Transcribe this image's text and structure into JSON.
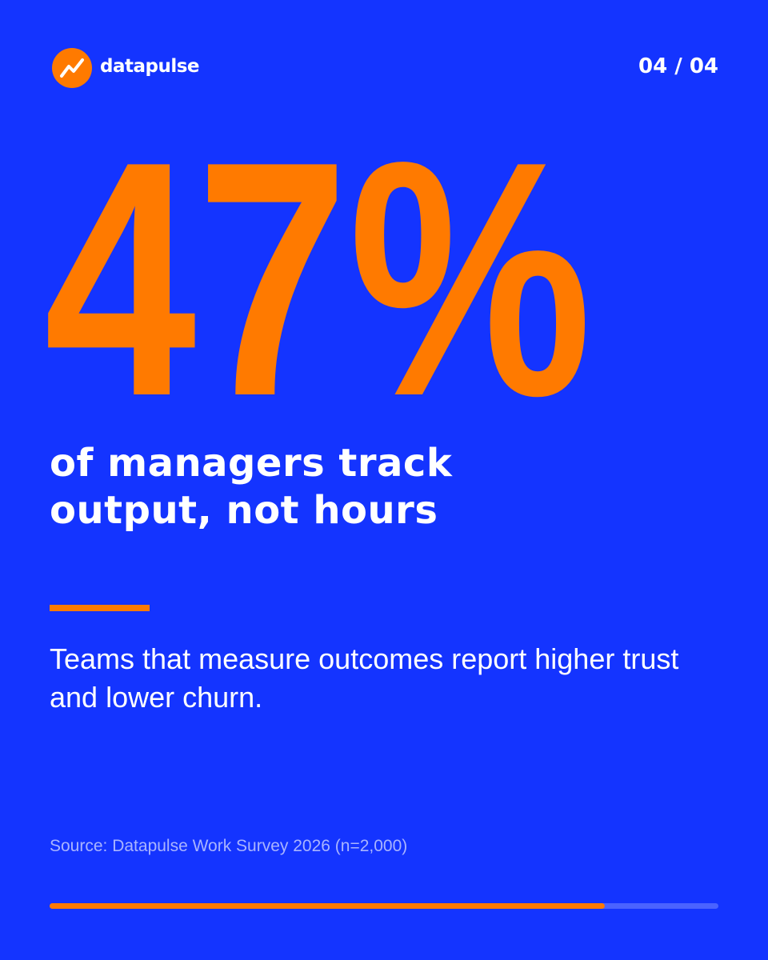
{
  "brand": "datapulse",
  "page_indicator": "04 / 04",
  "stat": "47%",
  "headline_lines": [
    "of managers track",
    "output, not hours"
  ],
  "body": "Teams that measure outcomes report higher trust and lower churn.",
  "source": "Source: Datapulse Work Survey 2026 (n=2,000)",
  "progress": {
    "value": 83,
    "range": [
      0,
      100
    ]
  }
}
